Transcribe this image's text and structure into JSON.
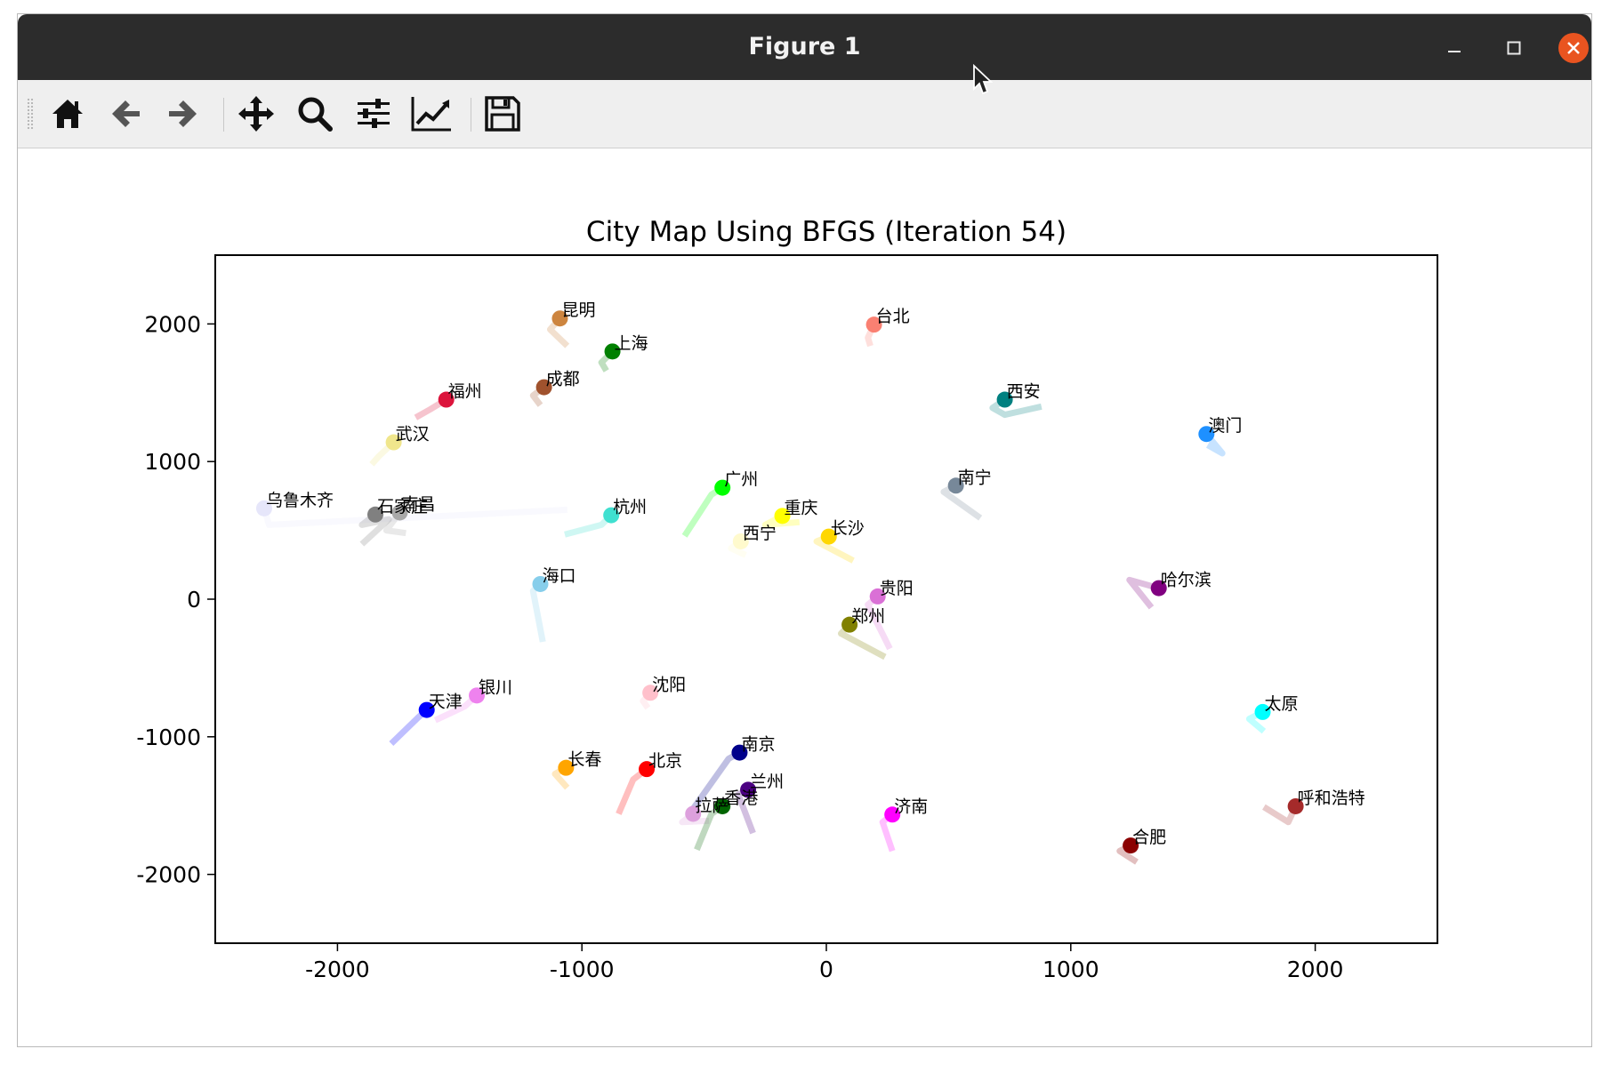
{
  "window": {
    "title": "Figure 1"
  },
  "toolbar": {
    "buttons": [
      {
        "name": "home-button",
        "icon": "home-icon"
      },
      {
        "name": "back-button",
        "icon": "arrow-left-icon"
      },
      {
        "name": "forward-button",
        "icon": "arrow-right-icon"
      },
      {
        "name": "pan-button",
        "icon": "move-icon"
      },
      {
        "name": "zoom-button",
        "icon": "magnifier-icon"
      },
      {
        "name": "configure-subplots-button",
        "icon": "sliders-icon"
      },
      {
        "name": "edit-axis-button",
        "icon": "line-chart-icon"
      },
      {
        "name": "save-button",
        "icon": "floppy-disk-icon"
      }
    ]
  },
  "chart_data": {
    "type": "scatter",
    "title": "City Map Using BFGS (Iteration 54)",
    "xlabel": "",
    "ylabel": "",
    "xlim": [
      -2500,
      2500
    ],
    "ylim": [
      -2500,
      2500
    ],
    "xticks": [
      -2000,
      -1000,
      0,
      1000,
      2000
    ],
    "yticks": [
      2000,
      1000,
      0,
      -1000,
      -2000
    ],
    "xtick_labels": [
      "-2000",
      "-1000",
      "0",
      "1000",
      "2000"
    ],
    "ytick_labels": [
      "2000",
      "1000",
      "0",
      "-1000",
      "-2000"
    ],
    "grid": false,
    "legend": "none",
    "points": [
      {
        "label": "昆明",
        "x": -1090,
        "y": 2040,
        "color": "#cd853f",
        "trail": [
          [
            -1090,
            2040
          ],
          [
            -1130,
            1960
          ],
          [
            -1060,
            1840
          ]
        ]
      },
      {
        "label": "上海",
        "x": -875,
        "y": 1800,
        "color": "#008000",
        "trail": [
          [
            -875,
            1800
          ],
          [
            -920,
            1720
          ],
          [
            -900,
            1660
          ]
        ]
      },
      {
        "label": "台北",
        "x": 195,
        "y": 1995,
        "color": "#fa8072",
        "trail": [
          [
            195,
            1995
          ],
          [
            170,
            1900
          ],
          [
            180,
            1840
          ]
        ]
      },
      {
        "label": "成都",
        "x": -1155,
        "y": 1540,
        "color": "#a0522d",
        "trail": [
          [
            -1155,
            1540
          ],
          [
            -1200,
            1480
          ],
          [
            -1170,
            1410
          ]
        ]
      },
      {
        "label": "福州",
        "x": -1555,
        "y": 1450,
        "color": "#dc143c",
        "trail": [
          [
            -1555,
            1450
          ],
          [
            -1620,
            1380
          ],
          [
            -1680,
            1320
          ]
        ]
      },
      {
        "label": "西安",
        "x": 730,
        "y": 1450,
        "color": "#008080",
        "trail": [
          [
            730,
            1450
          ],
          [
            680,
            1390
          ],
          [
            730,
            1340
          ],
          [
            880,
            1400
          ]
        ]
      },
      {
        "label": "澳门",
        "x": 1555,
        "y": 1200,
        "color": "#1e90ff",
        "trail": [
          [
            1555,
            1200
          ],
          [
            1620,
            1060
          ],
          [
            1560,
            1120
          ]
        ]
      },
      {
        "label": "武汉",
        "x": -1770,
        "y": 1140,
        "color": "#f0e68c",
        "trail": [
          [
            -1770,
            1140
          ],
          [
            -1830,
            1040
          ],
          [
            -1860,
            980
          ]
        ]
      },
      {
        "label": "南宁",
        "x": 530,
        "y": 825,
        "color": "#778899",
        "trail": [
          [
            530,
            825
          ],
          [
            480,
            780
          ],
          [
            630,
            590
          ]
        ]
      },
      {
        "label": "广州",
        "x": -425,
        "y": 810,
        "color": "#00ff00",
        "trail": [
          [
            -425,
            810
          ],
          [
            -470,
            760
          ],
          [
            -580,
            460
          ]
        ]
      },
      {
        "label": "乌鲁木齐",
        "x": -2300,
        "y": 660,
        "color": "#e6e6fa",
        "trail": [
          [
            -2300,
            660
          ],
          [
            -2280,
            540
          ],
          [
            -1060,
            650
          ]
        ]
      },
      {
        "label": "石家庄",
        "x": -1845,
        "y": 615,
        "color": "#808080",
        "trail": [
          [
            -1845,
            615
          ],
          [
            -1900,
            540
          ],
          [
            -1790,
            580
          ],
          [
            -1900,
            400
          ]
        ]
      },
      {
        "label": "南昌",
        "x": -1745,
        "y": 630,
        "color": "#a9a9a9",
        "trail": [
          [
            -1745,
            630
          ],
          [
            -1800,
            500
          ],
          [
            -1720,
            480
          ]
        ]
      },
      {
        "label": "杭州",
        "x": -880,
        "y": 610,
        "color": "#40e0d0",
        "trail": [
          [
            -880,
            610
          ],
          [
            -920,
            540
          ],
          [
            -1070,
            470
          ]
        ]
      },
      {
        "label": "重庆",
        "x": -180,
        "y": 605,
        "color": "#ffff00",
        "trail": [
          [
            -180,
            605
          ],
          [
            -250,
            540
          ],
          [
            -110,
            560
          ]
        ]
      },
      {
        "label": "西宁",
        "x": -350,
        "y": 420,
        "color": "#fffacd",
        "trail": [
          [
            -350,
            420
          ],
          [
            -390,
            370
          ],
          [
            -330,
            320
          ]
        ]
      },
      {
        "label": "长沙",
        "x": 10,
        "y": 455,
        "color": "#ffd700",
        "trail": [
          [
            10,
            455
          ],
          [
            -40,
            420
          ],
          [
            110,
            280
          ]
        ]
      },
      {
        "label": "海口",
        "x": -1170,
        "y": 110,
        "color": "#87ceeb",
        "trail": [
          [
            -1170,
            110
          ],
          [
            -1200,
            60
          ],
          [
            -1160,
            -310
          ]
        ]
      },
      {
        "label": "贵阳",
        "x": 210,
        "y": 20,
        "color": "#da70d6",
        "trail": [
          [
            210,
            20
          ],
          [
            170,
            -40
          ],
          [
            260,
            -360
          ]
        ]
      },
      {
        "label": "哈尔滨",
        "x": 1360,
        "y": 80,
        "color": "#800080",
        "trail": [
          [
            1360,
            80
          ],
          [
            1240,
            140
          ],
          [
            1330,
            -60
          ]
        ]
      },
      {
        "label": "郑州",
        "x": 95,
        "y": -185,
        "color": "#808000",
        "trail": [
          [
            95,
            -185
          ],
          [
            60,
            -250
          ],
          [
            240,
            -420
          ]
        ]
      },
      {
        "label": "沈阳",
        "x": -720,
        "y": -680,
        "color": "#ffc0cb",
        "trail": [
          [
            -720,
            -680
          ],
          [
            -750,
            -740
          ],
          [
            -730,
            -790
          ]
        ]
      },
      {
        "label": "银川",
        "x": -1430,
        "y": -700,
        "color": "#ee82ee",
        "trail": [
          [
            -1430,
            -700
          ],
          [
            -1480,
            -780
          ],
          [
            -1600,
            -880
          ]
        ]
      },
      {
        "label": "天津",
        "x": -1635,
        "y": -805,
        "color": "#0000ff",
        "trail": [
          [
            -1635,
            -805
          ],
          [
            -1670,
            -860
          ],
          [
            -1780,
            -1050
          ]
        ]
      },
      {
        "label": "太原",
        "x": 1785,
        "y": -820,
        "color": "#00ffff",
        "trail": [
          [
            1785,
            -820
          ],
          [
            1730,
            -870
          ],
          [
            1790,
            -960
          ]
        ]
      },
      {
        "label": "南京",
        "x": -355,
        "y": -1115,
        "color": "#00008b",
        "trail": [
          [
            -355,
            -1115
          ],
          [
            -400,
            -1160
          ],
          [
            -560,
            -1560
          ]
        ]
      },
      {
        "label": "长春",
        "x": -1065,
        "y": -1225,
        "color": "#ffa500",
        "trail": [
          [
            -1065,
            -1225
          ],
          [
            -1110,
            -1270
          ],
          [
            -1060,
            -1370
          ]
        ]
      },
      {
        "label": "北京",
        "x": -735,
        "y": -1235,
        "color": "#ff0000",
        "trail": [
          [
            -735,
            -1235
          ],
          [
            -790,
            -1310
          ],
          [
            -850,
            -1560
          ]
        ]
      },
      {
        "label": "兰州",
        "x": -320,
        "y": -1385,
        "color": "#4b0082",
        "trail": [
          [
            -320,
            -1385
          ],
          [
            -360,
            -1420
          ],
          [
            -300,
            -1700
          ]
        ]
      },
      {
        "label": "拉萨",
        "x": -545,
        "y": -1560,
        "color": "#dda0dd",
        "trail": [
          [
            -545,
            -1560
          ],
          [
            -590,
            -1620
          ],
          [
            -480,
            -1610
          ]
        ]
      },
      {
        "label": "香港",
        "x": -425,
        "y": -1505,
        "color": "#006400",
        "trail": [
          [
            -425,
            -1505
          ],
          [
            -470,
            -1560
          ],
          [
            -530,
            -1820
          ]
        ]
      },
      {
        "label": "济南",
        "x": 270,
        "y": -1565,
        "color": "#ff00ff",
        "trail": [
          [
            270,
            -1565
          ],
          [
            230,
            -1620
          ],
          [
            270,
            -1830
          ]
        ]
      },
      {
        "label": "呼和浩特",
        "x": 1920,
        "y": -1505,
        "color": "#a52a2a",
        "trail": [
          [
            1920,
            -1505
          ],
          [
            1890,
            -1620
          ],
          [
            1790,
            -1510
          ]
        ]
      },
      {
        "label": "合肥",
        "x": 1245,
        "y": -1790,
        "color": "#8b0000",
        "trail": [
          [
            1245,
            -1790
          ],
          [
            1200,
            -1830
          ],
          [
            1270,
            -1910
          ]
        ]
      }
    ]
  }
}
